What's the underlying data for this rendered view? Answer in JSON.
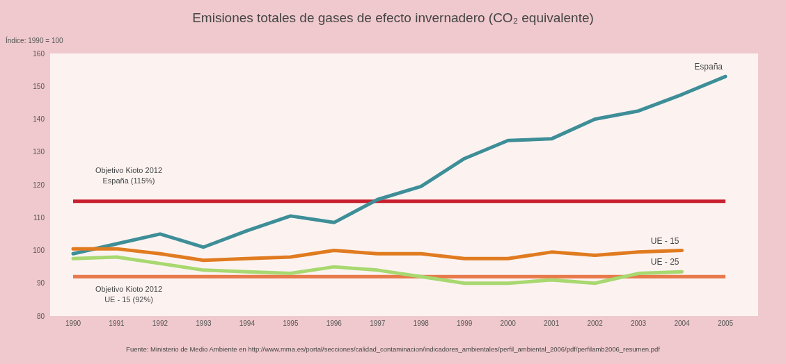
{
  "chart_data": {
    "type": "line",
    "title": "Emisiones totales de gases de efecto invernadero (CO₂ equivalente)",
    "ylabel": "Índice: 1990 = 100",
    "categories": [
      "1990",
      "1991",
      "1992",
      "1993",
      "1994",
      "1995",
      "1996",
      "1997",
      "1998",
      "1999",
      "2000",
      "2001",
      "2002",
      "2003",
      "2004",
      "2005"
    ],
    "series": [
      {
        "name": "España",
        "color": "#3e8e98",
        "values": [
          99,
          102,
          105,
          101,
          106,
          110.5,
          108.5,
          115.5,
          119.5,
          128,
          133.5,
          134,
          140,
          142.5,
          147.5,
          153
        ]
      },
      {
        "name": "UE - 15",
        "color": "#e07b20",
        "values": [
          100.5,
          100.5,
          99,
          97,
          97.5,
          98,
          100,
          99,
          99,
          97.5,
          97.5,
          99.5,
          98.5,
          99.5,
          100,
          null
        ]
      },
      {
        "name": "UE - 25",
        "color": "#a8d870",
        "values": [
          97.5,
          98,
          96,
          94,
          93.5,
          93,
          95,
          94,
          92,
          90,
          90,
          91,
          90,
          93,
          93.5,
          null
        ]
      }
    ],
    "ylim": [
      80,
      160
    ],
    "yticks": [
      80,
      90,
      100,
      110,
      120,
      130,
      140,
      150,
      160
    ],
    "ref_lines": [
      {
        "axis": "y",
        "value": 115,
        "label": "Objetivo Kioto 2012\nEspaña (115%)",
        "color": "#c8202e"
      },
      {
        "axis": "y",
        "value": 92,
        "label": "Objetivo Kioto 2012\nUE - 15 (92%)",
        "color": "#e8794a"
      }
    ],
    "annotations": [
      "Fuente: Ministerio de Medio Ambiente en http://www.mma.es/portal/secciones/calidad_contaminacion/indicadores_ambientales/perfil_ambiental_2006/pdf/perfilamb2006_resumen.pdf"
    ],
    "grid": false,
    "legend": false,
    "marker": "none",
    "line_style": "solid"
  }
}
